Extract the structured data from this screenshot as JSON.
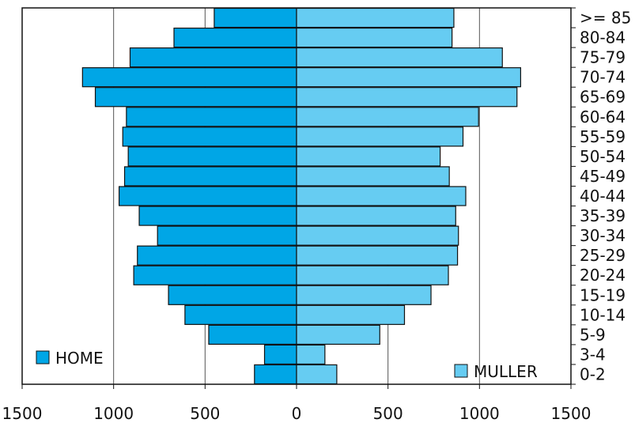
{
  "chart_data": {
    "type": "bar",
    "orientation": "horizontal",
    "layout": "population-pyramid",
    "categories": [
      "0-2",
      "3-4",
      "5-9",
      "10-14",
      "15-19",
      "20-24",
      "25-29",
      "30-34",
      "35-39",
      "40-44",
      "45-49",
      "50-54",
      "55-59",
      "60-64",
      "65-69",
      "70-74",
      "75-79",
      "80-84",
      ">= 85"
    ],
    "series": [
      {
        "name": "HOME",
        "side": "left",
        "color": "#00a6e6",
        "values": [
          230,
          175,
          480,
          610,
          700,
          890,
          870,
          760,
          860,
          970,
          940,
          920,
          950,
          930,
          1100,
          1170,
          910,
          670,
          450
        ]
      },
      {
        "name": "MULLER",
        "side": "right",
        "color": "#66ccf2",
        "values": [
          220,
          155,
          455,
          590,
          735,
          830,
          880,
          885,
          870,
          925,
          835,
          785,
          910,
          995,
          1205,
          1225,
          1125,
          850,
          860
        ]
      }
    ],
    "x_ticks": [
      1500,
      1000,
      500,
      0,
      500,
      1000,
      1500
    ],
    "xlim": [
      -1500,
      1500
    ],
    "grid": true,
    "legend": [
      {
        "label": "HOME",
        "placement": "bottom-left"
      },
      {
        "label": "MULLER",
        "placement": "bottom-right"
      }
    ]
  }
}
